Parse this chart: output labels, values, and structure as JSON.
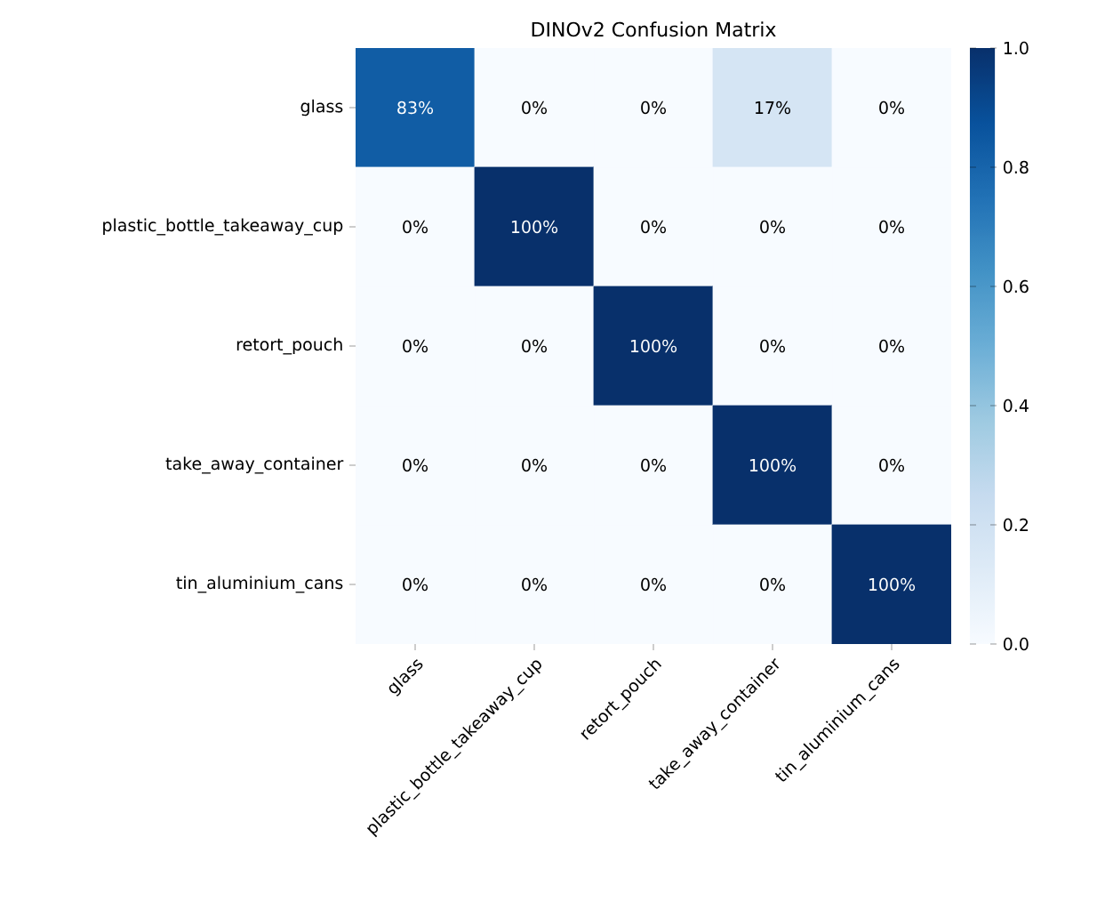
{
  "chart_data": {
    "type": "heatmap",
    "title": "DINOv2 Confusion Matrix",
    "categories": [
      "glass",
      "plastic_bottle_takeaway_cup",
      "retort_pouch",
      "take_away_container",
      "tin_aluminium_cans"
    ],
    "y_categories": [
      "glass",
      "plastic_bottle_takeaway_cup",
      "retort_pouch",
      "take_away_container",
      "tin_aluminium_cans"
    ],
    "cells": [
      [
        0.83,
        0,
        0,
        0.17,
        0
      ],
      [
        0,
        1,
        0,
        0,
        0
      ],
      [
        0,
        0,
        1,
        0,
        0
      ],
      [
        0,
        0,
        0,
        1,
        0
      ],
      [
        0,
        0,
        0,
        0,
        1
      ]
    ],
    "cell_labels": [
      [
        "83%",
        "0%",
        "0%",
        "17%",
        "0%"
      ],
      [
        "0%",
        "100%",
        "0%",
        "0%",
        "0%"
      ],
      [
        "0%",
        "0%",
        "100%",
        "0%",
        "0%"
      ],
      [
        "0%",
        "0%",
        "0%",
        "100%",
        "0%"
      ],
      [
        "0%",
        "0%",
        "0%",
        "0%",
        "100%"
      ]
    ],
    "clim": [
      0,
      1
    ],
    "cticks": [
      {
        "value": 0,
        "label": "0.0"
      },
      {
        "value": 0.2,
        "label": "0.2"
      },
      {
        "value": 0.4,
        "label": "0.4"
      },
      {
        "value": 0.6,
        "label": "0.6"
      },
      {
        "value": 0.8,
        "label": "0.8"
      },
      {
        "value": 1,
        "label": "1.0"
      }
    ]
  }
}
